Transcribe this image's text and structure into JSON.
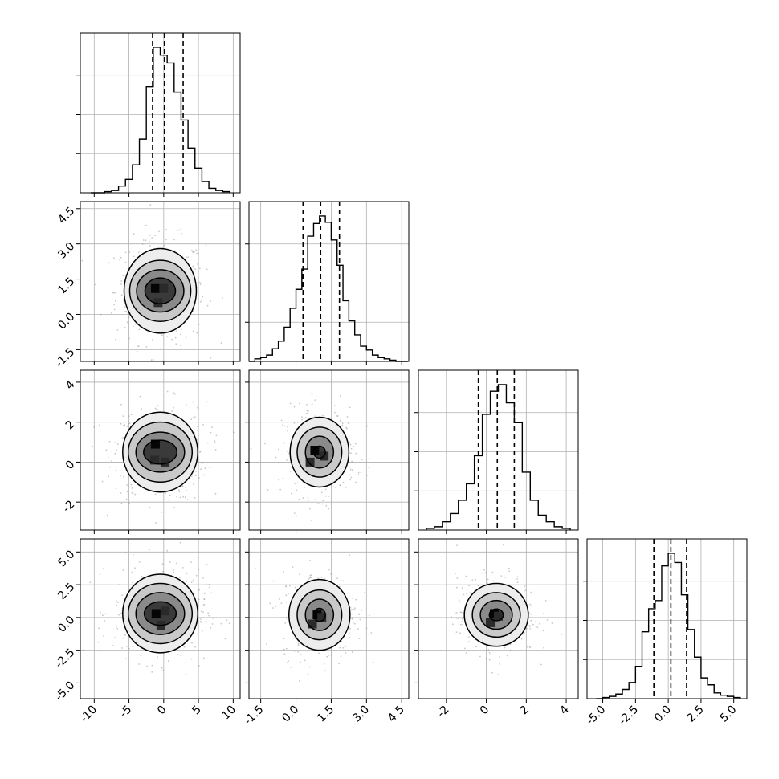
{
  "chart_data": {
    "type": "corner",
    "title": "",
    "grid": true,
    "colors": {
      "line": "#000000",
      "grid": "#b0b0b0",
      "scatter": "#9a9a9a"
    },
    "params": [
      {
        "range": [
          -12,
          11
        ],
        "ticks": [
          "-10",
          "-5",
          "0",
          "5",
          "10"
        ],
        "tick_values": [
          -10,
          -5,
          0,
          5,
          10
        ],
        "quantiles": [
          -1.6,
          0.1,
          2.8
        ],
        "hist": {
          "edges": [
            -10.5,
            -9.5,
            -8.5,
            -7.5,
            -6.5,
            -5.5,
            -4.5,
            -3.5,
            -2.5,
            -1.5,
            -0.5,
            0.5,
            1.5,
            2.5,
            3.5,
            4.5,
            5.5,
            6.5,
            7.5,
            8.5,
            9.5
          ],
          "counts": [
            0,
            0,
            1,
            2,
            6,
            12,
            25,
            48,
            95,
            130,
            123,
            116,
            90,
            65,
            40,
            22,
            10,
            4,
            2,
            1
          ]
        }
      },
      {
        "range": [
          -2.0,
          4.8
        ],
        "ticks": [
          "-1.5",
          "0.0",
          "1.5",
          "3.0",
          "4.5"
        ],
        "tick_values": [
          -1.5,
          0.0,
          1.5,
          3.0,
          4.5
        ],
        "quantiles": [
          0.3,
          1.05,
          1.85
        ],
        "hist": {
          "edges": [
            -2.0,
            -1.75,
            -1.5,
            -1.25,
            -1.0,
            -0.75,
            -0.5,
            -0.25,
            0.0,
            0.25,
            0.5,
            0.75,
            1.0,
            1.25,
            1.5,
            1.75,
            2.0,
            2.25,
            2.5,
            2.75,
            3.0,
            3.25,
            3.5,
            3.75,
            4.0,
            4.25,
            4.5,
            4.75
          ],
          "counts": [
            0,
            2,
            3,
            5,
            10,
            16,
            27,
            42,
            57,
            73,
            99,
            109,
            115,
            110,
            96,
            76,
            48,
            32,
            21,
            12,
            9,
            5,
            3,
            2,
            1,
            0,
            0
          ]
        }
      },
      {
        "range": [
          -3.4,
          4.6
        ],
        "ticks": [
          "-2",
          "0",
          "2",
          "4"
        ],
        "tick_values": [
          -2,
          0,
          2,
          4
        ],
        "quantiles": [
          -0.4,
          0.55,
          1.4
        ],
        "hist": {
          "edges": [
            -3.0,
            -2.6,
            -2.2,
            -1.8,
            -1.4,
            -1.0,
            -0.6,
            -0.2,
            0.2,
            0.6,
            1.0,
            1.4,
            1.8,
            2.2,
            2.6,
            3.0,
            3.4,
            3.8,
            4.2
          ],
          "counts": [
            1,
            2,
            5,
            10,
            18,
            28,
            45,
            70,
            84,
            88,
            77,
            65,
            35,
            18,
            9,
            5,
            2,
            1
          ]
        }
      },
      {
        "range": [
          -6.2,
          6.0
        ],
        "ticks": [
          "-5.0",
          "-2.5",
          "0.0",
          "2.5",
          "5.0"
        ],
        "tick_values": [
          -5.0,
          -2.5,
          0.0,
          2.5,
          5.0
        ],
        "quantiles": [
          -1.1,
          0.2,
          1.4
        ],
        "hist": {
          "edges": [
            -5.5,
            -5.0,
            -4.5,
            -4.0,
            -3.5,
            -3.0,
            -2.5,
            -2.0,
            -1.5,
            -1.0,
            -0.5,
            0.0,
            0.5,
            1.0,
            1.5,
            2.0,
            2.5,
            3.0,
            3.5,
            4.0,
            4.5,
            5.0,
            5.5
          ],
          "counts": [
            0,
            1,
            2,
            4,
            8,
            14,
            28,
            58,
            78,
            85,
            115,
            126,
            118,
            90,
            60,
            36,
            18,
            12,
            5,
            3,
            2,
            1
          ]
        }
      }
    ],
    "pairs": [
      {
        "row": 1,
        "col": 0,
        "center": [
          -0.5,
          1.0
        ],
        "contour_radii": [
          [
            2.2,
            0.55
          ],
          [
            3.4,
            0.9
          ],
          [
            4.4,
            1.3
          ],
          [
            5.2,
            1.8
          ]
        ],
        "dense": [
          [
            -1.2,
            1.1
          ],
          [
            0.0,
            1.1
          ],
          [
            -0.8,
            0.5
          ]
        ]
      },
      {
        "row": 2,
        "col": 0,
        "center": [
          -0.5,
          0.5
        ],
        "contour_radii": [
          [
            2.4,
            0.6
          ],
          [
            3.5,
            1.0
          ],
          [
            4.6,
            1.5
          ],
          [
            5.4,
            2.0
          ]
        ],
        "dense": [
          [
            -1.2,
            0.9
          ],
          [
            0.2,
            0.0
          ],
          [
            -1.3,
            0.1
          ]
        ]
      },
      {
        "row": 2,
        "col": 1,
        "center": [
          1.0,
          0.5
        ],
        "contour_radii": [
          [
            0.25,
            0.3
          ],
          [
            0.6,
            0.8
          ],
          [
            0.95,
            1.25
          ],
          [
            1.25,
            1.75
          ]
        ],
        "dense": [
          [
            0.8,
            0.6
          ],
          [
            1.2,
            0.3
          ],
          [
            0.6,
            0.0
          ]
        ]
      },
      {
        "row": 3,
        "col": 0,
        "center": [
          -0.5,
          0.3
        ],
        "contour_radii": [
          [
            2.3,
            0.9
          ],
          [
            3.5,
            1.6
          ],
          [
            4.6,
            2.3
          ],
          [
            5.4,
            3.0
          ]
        ],
        "dense": [
          [
            -1.1,
            0.3
          ],
          [
            0.2,
            0.5
          ],
          [
            -0.4,
            -0.6
          ]
        ]
      },
      {
        "row": 3,
        "col": 1,
        "center": [
          1.0,
          0.2
        ],
        "contour_radii": [
          [
            0.25,
            0.5
          ],
          [
            0.6,
            1.2
          ],
          [
            0.95,
            1.9
          ],
          [
            1.3,
            2.7
          ]
        ],
        "dense": [
          [
            0.9,
            0.2
          ],
          [
            1.1,
            0.0
          ],
          [
            0.7,
            -0.5
          ]
        ]
      },
      {
        "row": 3,
        "col": 2,
        "center": [
          0.5,
          0.2
        ],
        "contour_radii": [
          [
            0.35,
            0.45
          ],
          [
            0.8,
            1.1
          ],
          [
            1.2,
            1.7
          ],
          [
            1.6,
            2.4
          ]
        ],
        "dense": [
          [
            0.4,
            0.3
          ],
          [
            0.6,
            0.1
          ],
          [
            0.2,
            -0.4
          ]
        ]
      }
    ]
  }
}
